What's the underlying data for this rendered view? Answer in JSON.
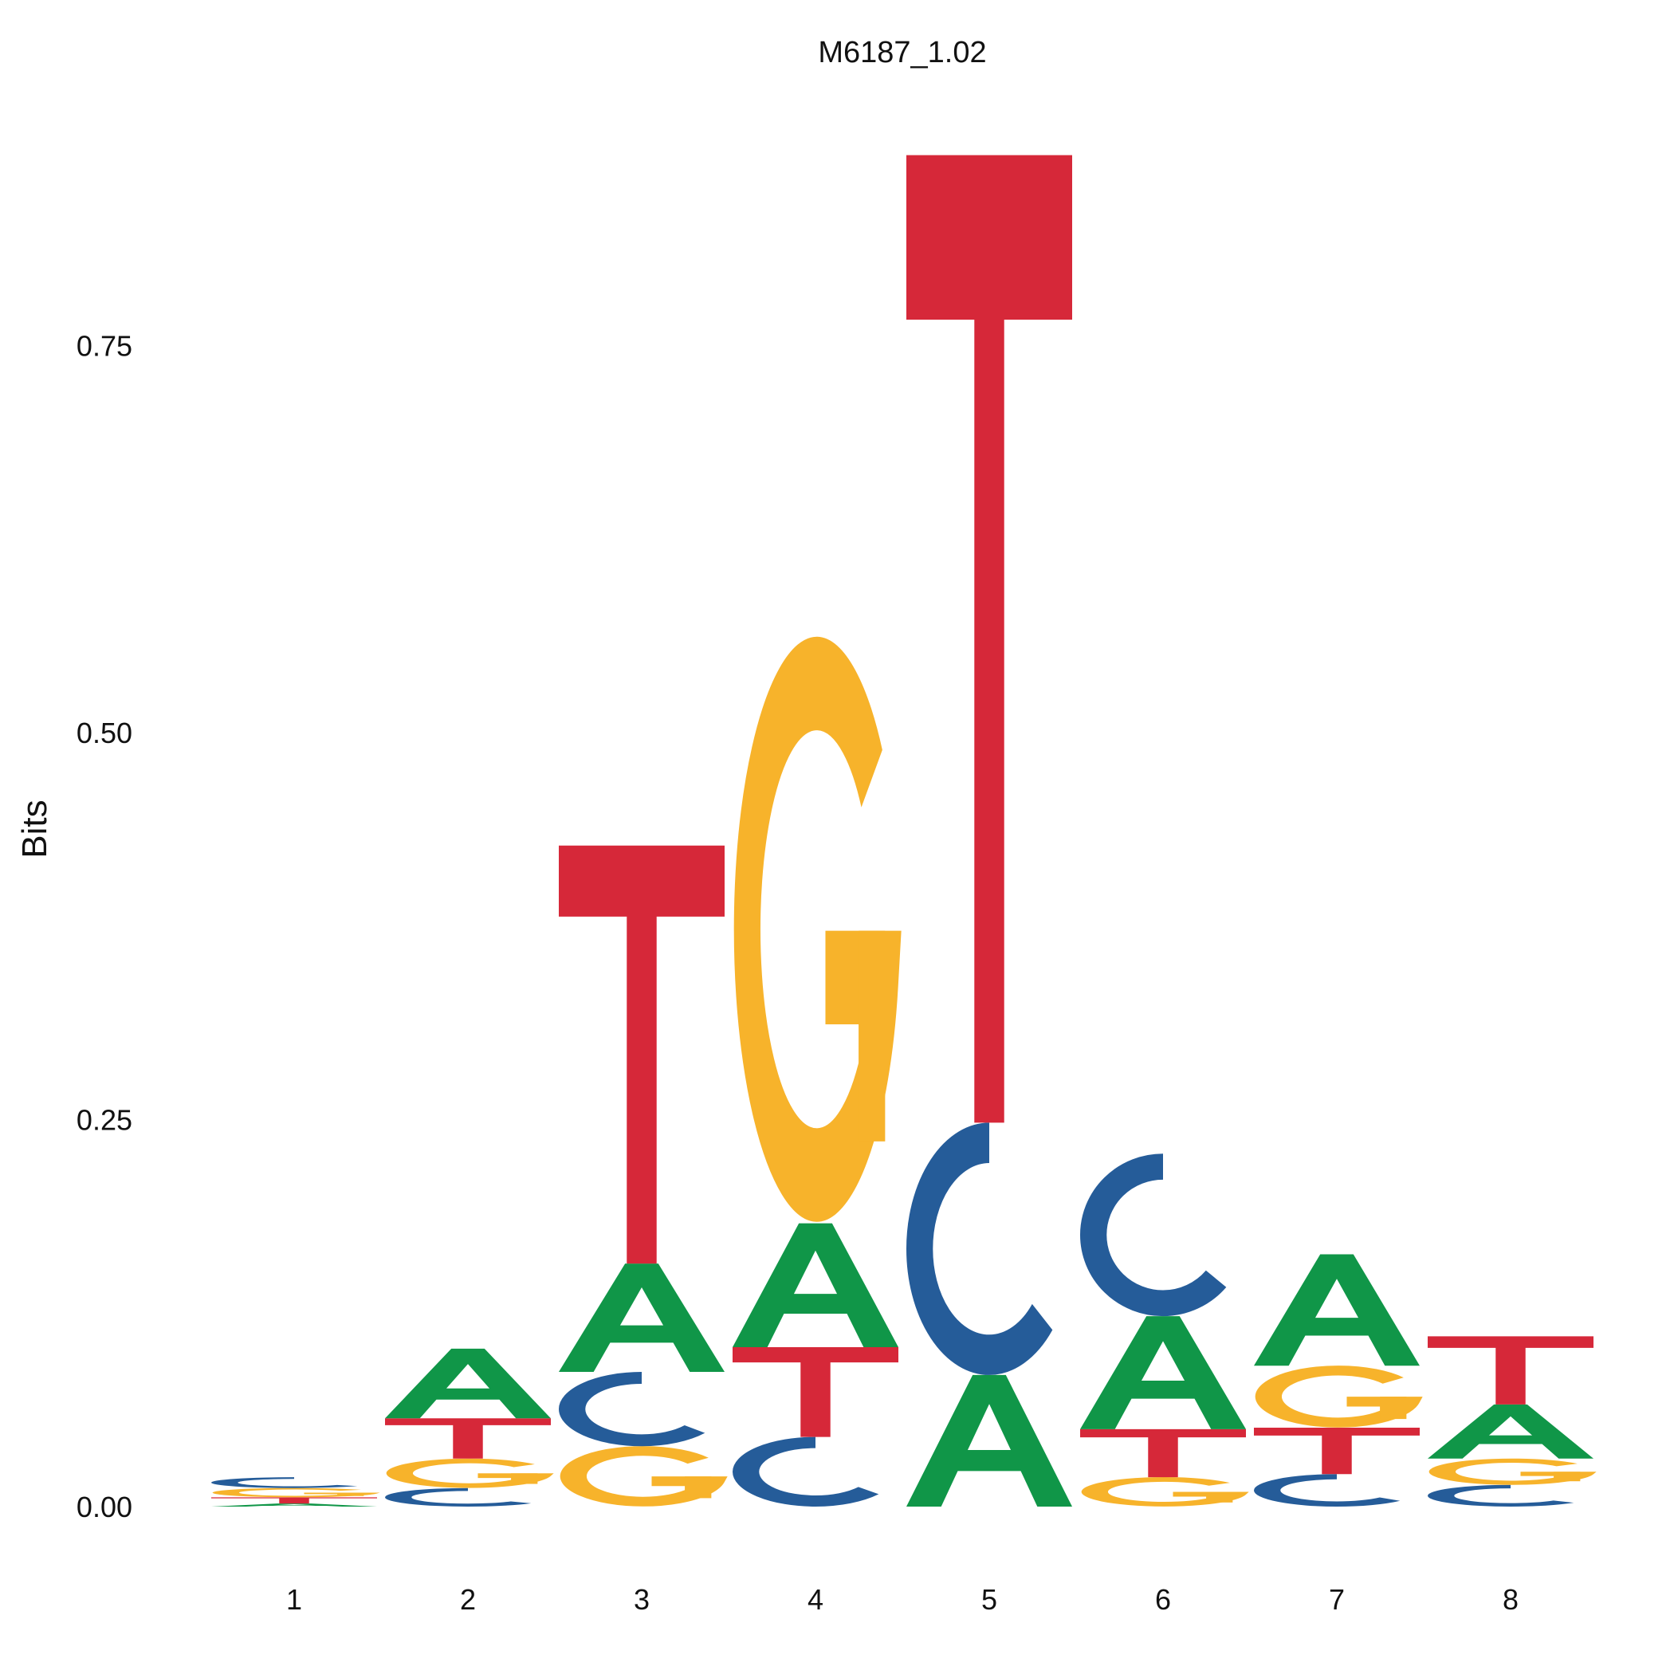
{
  "chart_data": {
    "type": "sequence-logo",
    "title": "M6187_1.02",
    "xlabel": "",
    "ylabel": "Bits",
    "ylim": [
      0,
      0.87
    ],
    "grid": false,
    "legend": "none",
    "yticks": [
      "0.00",
      "0.25",
      "0.50",
      "0.75"
    ],
    "ytick_values": [
      0,
      0.25,
      0.5,
      0.75
    ],
    "positions": [
      "1",
      "2",
      "3",
      "4",
      "5",
      "6",
      "7",
      "8"
    ],
    "colors": {
      "A": "#109648",
      "C": "#255C99",
      "G": "#F7B32B",
      "T": "#D62839"
    },
    "stacks": [
      [
        {
          "letter": "A",
          "height": 0.002
        },
        {
          "letter": "T",
          "height": 0.004
        },
        {
          "letter": "G",
          "height": 0.006
        },
        {
          "letter": "C",
          "height": 0.007
        }
      ],
      [
        {
          "letter": "C",
          "height": 0.012
        },
        {
          "letter": "G",
          "height": 0.019
        },
        {
          "letter": "T",
          "height": 0.026
        },
        {
          "letter": "A",
          "height": 0.045
        }
      ],
      [
        {
          "letter": "G",
          "height": 0.039
        },
        {
          "letter": "C",
          "height": 0.048
        },
        {
          "letter": "A",
          "height": 0.07
        },
        {
          "letter": "T",
          "height": 0.27
        }
      ],
      [
        {
          "letter": "C",
          "height": 0.045
        },
        {
          "letter": "T",
          "height": 0.058
        },
        {
          "letter": "A",
          "height": 0.08
        },
        {
          "letter": "G",
          "height": 0.378
        }
      ],
      [
        {
          "letter": "A",
          "height": 0.085
        },
        {
          "letter": "C",
          "height": 0.163
        },
        {
          "letter": "T",
          "height": 0.625
        }
      ],
      [
        {
          "letter": "G",
          "height": 0.019
        },
        {
          "letter": "T",
          "height": 0.031
        },
        {
          "letter": "A",
          "height": 0.073
        },
        {
          "letter": "C",
          "height": 0.105
        }
      ],
      [
        {
          "letter": "C",
          "height": 0.021
        },
        {
          "letter": "T",
          "height": 0.03
        },
        {
          "letter": "G",
          "height": 0.04
        },
        {
          "letter": "A",
          "height": 0.072
        }
      ],
      [
        {
          "letter": "C",
          "height": 0.014
        },
        {
          "letter": "G",
          "height": 0.017
        },
        {
          "letter": "A",
          "height": 0.035
        },
        {
          "letter": "T",
          "height": 0.044
        }
      ]
    ]
  }
}
